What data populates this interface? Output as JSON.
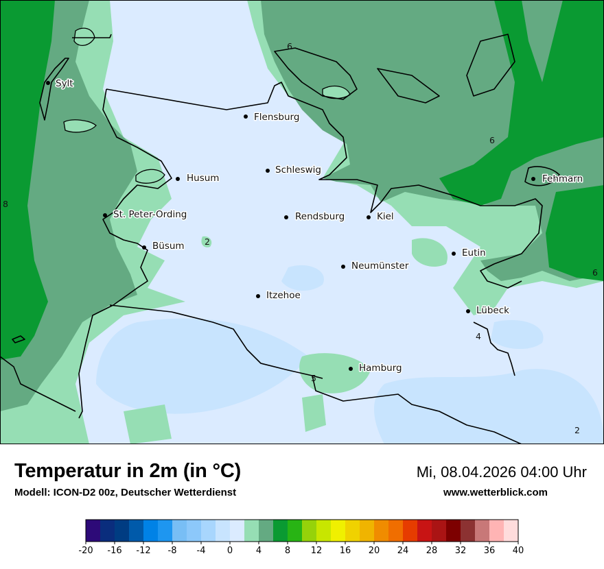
{
  "title": "Temperatur in 2m (in °C)",
  "model": "Modell: ICON-D2 00z, Deutscher Wetterdienst",
  "datetime": "Mi, 08.04.2026 04:00 Uhr",
  "website": "www.wetterblick.com",
  "cities": [
    {
      "name": "Sylt"
    },
    {
      "name": "Flensburg"
    },
    {
      "name": "Schleswig"
    },
    {
      "name": "Husum"
    },
    {
      "name": "Fehmarn"
    },
    {
      "name": "St. Peter-Ording"
    },
    {
      "name": "Rendsburg"
    },
    {
      "name": "Kiel"
    },
    {
      "name": "Büsum"
    },
    {
      "name": "Eutin"
    },
    {
      "name": "Neumünster"
    },
    {
      "name": "Itzehoe"
    },
    {
      "name": "Lübeck"
    },
    {
      "name": "Hamburg"
    }
  ],
  "isotherm_labels": [
    "6",
    "6",
    "8",
    "2",
    "6",
    "4",
    "5",
    "2"
  ],
  "legend": {
    "ticks": [
      "-20",
      "-16",
      "-12",
      "-8",
      "-4",
      "0",
      "4",
      "8",
      "12",
      "16",
      "20",
      "24",
      "28",
      "32",
      "36",
      "40"
    ],
    "colors": [
      "#2d0a78",
      "#0a2d7d",
      "#003c82",
      "#005aaa",
      "#0082e6",
      "#1e96f0",
      "#78bef5",
      "#8cc8fa",
      "#a8d6fd",
      "#c8e4fe",
      "#dbebff",
      "#96deb4",
      "#64aa82",
      "#0a9a32",
      "#28b414",
      "#96d20a",
      "#c8e600",
      "#f0f000",
      "#f0d200",
      "#f0b400",
      "#f08c00",
      "#f06e00",
      "#e63c00",
      "#c81414",
      "#aa1414",
      "#7d0000",
      "#8c3232",
      "#c87878",
      "#ffb4b4",
      "#ffdcdc"
    ]
  },
  "colors": {
    "sea_warm": "#0a9a32",
    "sea_mid": "#64aa82",
    "land_4to6": "#96deb4",
    "land_2to4": "#dbebff",
    "land_0to2": "#c8e4fe",
    "border": "#000000"
  }
}
